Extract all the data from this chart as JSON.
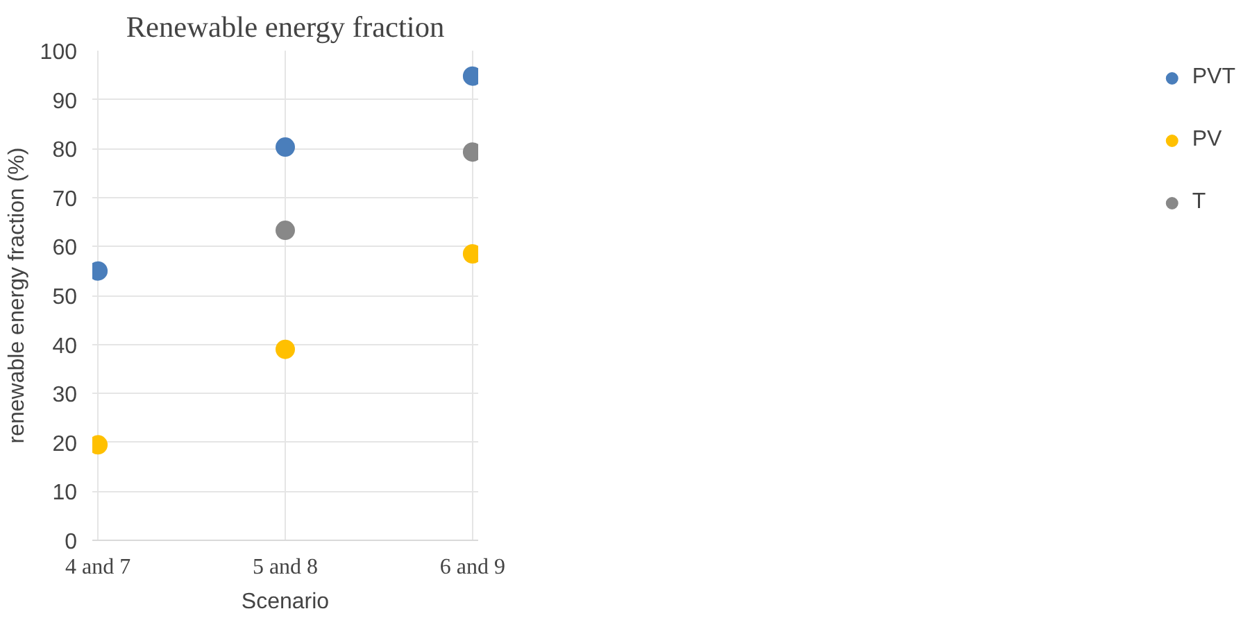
{
  "chart_data": {
    "type": "scatter",
    "title": "Renewable energy fraction",
    "xlabel": "Scenario",
    "ylabel": "renewable energy fraction (%)",
    "categories": [
      "4 and 7",
      "5 and 8",
      "6 and 9"
    ],
    "series": [
      {
        "name": "PVT",
        "color": "#4a7ebb",
        "values": [
          55,
          80.3,
          94.8
        ]
      },
      {
        "name": "PV",
        "color": "#ffc000",
        "values": [
          19.5,
          39,
          58.5
        ]
      },
      {
        "name": "T",
        "color": "#888888",
        "values": [
          null,
          63.3,
          79.3
        ]
      }
    ],
    "ylim": [
      0,
      100
    ],
    "yticks": [
      0,
      10,
      20,
      30,
      40,
      50,
      60,
      70,
      80,
      90,
      100
    ],
    "grid": true,
    "legend": "right",
    "marker": "circle"
  }
}
